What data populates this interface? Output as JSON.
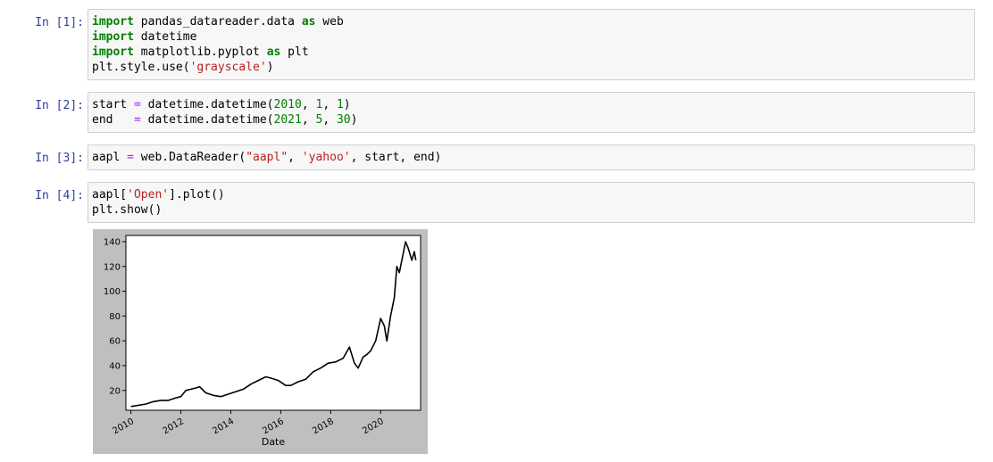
{
  "cells": [
    {
      "prompt": "In [1]:",
      "lines": [
        [
          {
            "t": "import",
            "c": "kw"
          },
          {
            "t": " pandas_datareader.data ",
            "c": ""
          },
          {
            "t": "as",
            "c": "kw"
          },
          {
            "t": " web",
            "c": ""
          }
        ],
        [
          {
            "t": "import",
            "c": "kw"
          },
          {
            "t": " datetime",
            "c": ""
          }
        ],
        [
          {
            "t": "import",
            "c": "kw"
          },
          {
            "t": " matplotlib.pyplot ",
            "c": ""
          },
          {
            "t": "as",
            "c": "kw"
          },
          {
            "t": " plt",
            "c": ""
          }
        ],
        [
          {
            "t": "plt.style.use(",
            "c": ""
          },
          {
            "t": "'grayscale'",
            "c": "str"
          },
          {
            "t": ")",
            "c": ""
          }
        ]
      ]
    },
    {
      "prompt": "In [2]:",
      "lines": [
        [
          {
            "t": "start ",
            "c": ""
          },
          {
            "t": "=",
            "c": "op"
          },
          {
            "t": " datetime.datetime(",
            "c": ""
          },
          {
            "t": "2010",
            "c": "num"
          },
          {
            "t": ", ",
            "c": ""
          },
          {
            "t": "1",
            "c": "num"
          },
          {
            "t": ", ",
            "c": ""
          },
          {
            "t": "1",
            "c": "num"
          },
          {
            "t": ")",
            "c": ""
          }
        ],
        [
          {
            "t": "end   ",
            "c": ""
          },
          {
            "t": "=",
            "c": "op"
          },
          {
            "t": " datetime.datetime(",
            "c": ""
          },
          {
            "t": "2021",
            "c": "num"
          },
          {
            "t": ", ",
            "c": ""
          },
          {
            "t": "5",
            "c": "num"
          },
          {
            "t": ", ",
            "c": ""
          },
          {
            "t": "30",
            "c": "num"
          },
          {
            "t": ")",
            "c": ""
          }
        ]
      ]
    },
    {
      "prompt": "In [3]:",
      "lines": [
        [
          {
            "t": "aapl ",
            "c": ""
          },
          {
            "t": "=",
            "c": "op"
          },
          {
            "t": " web.DataReader(",
            "c": ""
          },
          {
            "t": "\"aapl\"",
            "c": "str"
          },
          {
            "t": ", ",
            "c": ""
          },
          {
            "t": "'yahoo'",
            "c": "str"
          },
          {
            "t": ", start, end)",
            "c": ""
          }
        ]
      ]
    },
    {
      "prompt": "In [4]:",
      "lines": [
        [
          {
            "t": "aapl[",
            "c": ""
          },
          {
            "t": "'Open'",
            "c": "str"
          },
          {
            "t": "].plot()",
            "c": ""
          }
        ],
        [
          {
            "t": "plt.show()",
            "c": ""
          }
        ]
      ]
    }
  ],
  "chart_data": {
    "type": "line",
    "title": "",
    "xlabel": "Date",
    "ylabel": "",
    "xlim": [
      2009.8,
      2021.6
    ],
    "ylim": [
      4,
      145
    ],
    "xticks": [
      2010,
      2012,
      2014,
      2016,
      2018,
      2020
    ],
    "xtick_labels": [
      "2010",
      "2012",
      "2014",
      "2016",
      "2018",
      "2020"
    ],
    "yticks": [
      20,
      40,
      60,
      80,
      100,
      120,
      140
    ],
    "ytick_labels": [
      "20",
      "40",
      "60",
      "80",
      "100",
      "120",
      "140"
    ],
    "series": [
      {
        "line_color": "#000000",
        "x": [
          2010.0,
          2010.3,
          2010.6,
          2010.9,
          2011.2,
          2011.5,
          2011.8,
          2012.0,
          2012.2,
          2012.4,
          2012.6,
          2012.75,
          2013.0,
          2013.3,
          2013.6,
          2013.9,
          2014.2,
          2014.5,
          2014.8,
          2015.1,
          2015.4,
          2015.6,
          2015.9,
          2016.2,
          2016.4,
          2016.7,
          2017.0,
          2017.3,
          2017.6,
          2017.9,
          2018.2,
          2018.5,
          2018.75,
          2018.95,
          2019.1,
          2019.3,
          2019.45,
          2019.6,
          2019.8,
          2020.0,
          2020.15,
          2020.25,
          2020.4,
          2020.55,
          2020.65,
          2020.75,
          2020.9,
          2021.0,
          2021.1,
          2021.25,
          2021.35,
          2021.41
        ],
        "y": [
          7,
          8,
          9,
          11,
          12,
          12,
          14,
          15,
          20,
          21,
          22,
          23,
          18,
          16,
          15,
          17,
          19,
          21,
          25,
          28,
          31,
          30,
          28,
          24,
          24,
          27,
          29,
          35,
          38,
          42,
          43,
          46,
          55,
          42,
          38,
          47,
          49,
          52,
          60,
          78,
          72,
          60,
          80,
          95,
          120,
          115,
          130,
          140,
          135,
          125,
          132,
          125
        ]
      }
    ]
  }
}
